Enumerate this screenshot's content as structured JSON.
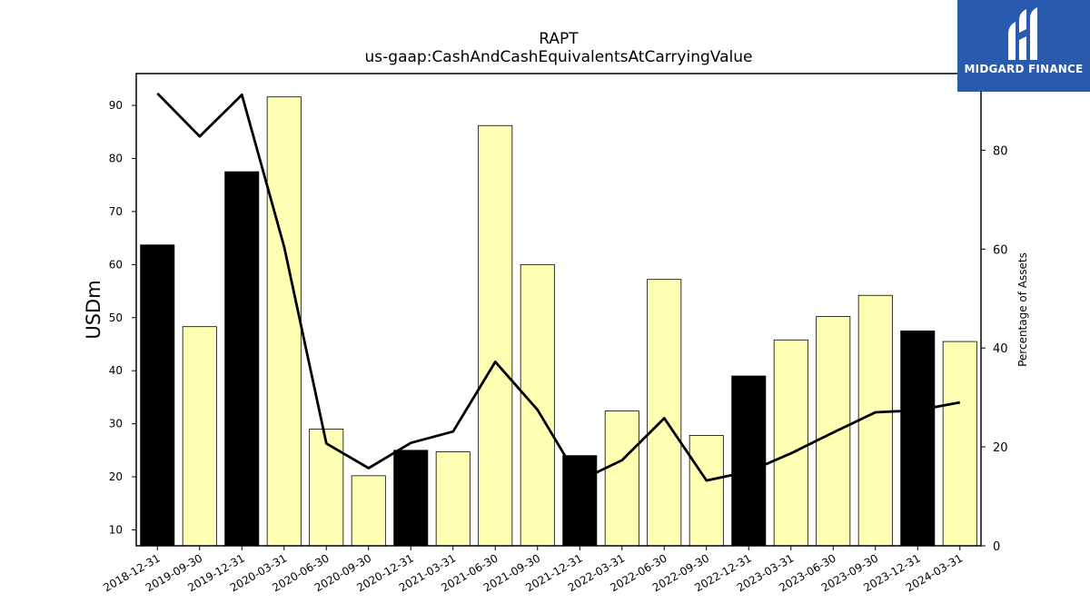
{
  "brand": {
    "name": "MIDGARD FINANCE",
    "bg_color": "#2a5aad"
  },
  "chart_data": {
    "type": "bar",
    "title": "RAPT",
    "subtitle": "us-gaap:CashAndCashEquivalentsAtCarryingValue",
    "ylabel": "USDm",
    "ylabel_right": "Percentage of Assets",
    "ylim": [
      7,
      96
    ],
    "ylim_right": [
      0,
      95.5
    ],
    "yticks": [
      10,
      20,
      30,
      40,
      50,
      60,
      70,
      80,
      90
    ],
    "yticks_right": [
      0,
      20,
      40,
      60,
      80
    ],
    "categories": [
      "2018-12-31",
      "2019-09-30",
      "2019-12-31",
      "2020-03-31",
      "2020-06-30",
      "2020-09-30",
      "2020-12-31",
      "2021-03-31",
      "2021-06-30",
      "2021-09-30",
      "2021-12-31",
      "2022-03-31",
      "2022-06-30",
      "2022-09-30",
      "2022-12-31",
      "2023-03-31",
      "2023-06-30",
      "2023-09-30",
      "2023-12-31",
      "2024-03-31"
    ],
    "series": [
      {
        "type": "bar",
        "axis": "left",
        "values": [
          63.7,
          48.3,
          77.5,
          91.6,
          29.0,
          20.2,
          25.0,
          24.7,
          86.2,
          60.0,
          24.0,
          32.4,
          57.2,
          27.8,
          39.0,
          45.8,
          50.2,
          54.2,
          47.5,
          45.5
        ],
        "year_end_color": "#000000",
        "quarter_color": "#ffffb3",
        "year_end": [
          true,
          false,
          true,
          false,
          false,
          false,
          true,
          false,
          false,
          false,
          true,
          false,
          false,
          false,
          true,
          false,
          false,
          false,
          true,
          false
        ]
      },
      {
        "type": "line",
        "axis": "right",
        "color": "#000000",
        "values": [
          91.5,
          82.8,
          91.2,
          60.5,
          20.7,
          15.7,
          20.8,
          23.1,
          37.2,
          27.5,
          13.2,
          17.3,
          25.8,
          13.2,
          15.0,
          18.7,
          22.9,
          27.0,
          27.4,
          29.0
        ]
      }
    ],
    "grid": false
  }
}
